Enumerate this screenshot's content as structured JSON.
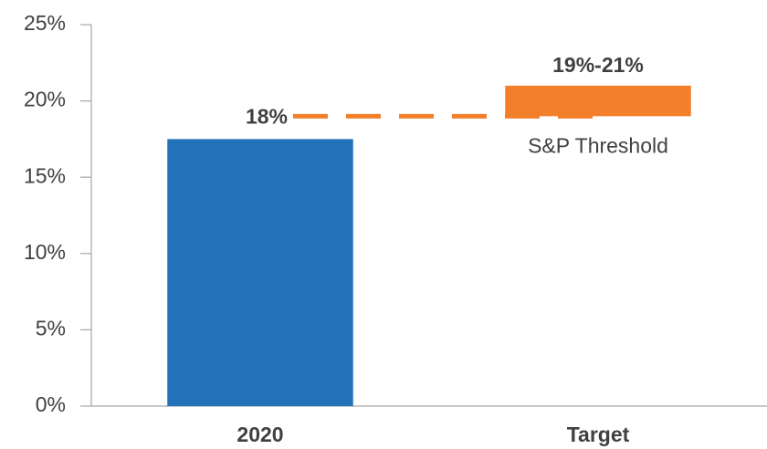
{
  "chart_data": {
    "type": "bar",
    "categories": [
      "2020",
      "Target"
    ],
    "values": [
      17.5,
      [
        19,
        21
      ]
    ],
    "value_labels": [
      "18%",
      "19%-21%"
    ],
    "colors": [
      "#2372b9",
      "#f47f2a"
    ],
    "threshold": {
      "value": 19,
      "label": "S&P Threshold",
      "color": "#f47f2a"
    },
    "ylim": [
      0,
      25
    ],
    "yticks": [
      {
        "value": 0,
        "label": "0%"
      },
      {
        "value": 5,
        "label": "5%"
      },
      {
        "value": 10,
        "label": "10%"
      },
      {
        "value": 15,
        "label": "15%"
      },
      {
        "value": 20,
        "label": "20%"
      },
      {
        "value": 25,
        "label": "25%"
      }
    ],
    "grid": false
  }
}
